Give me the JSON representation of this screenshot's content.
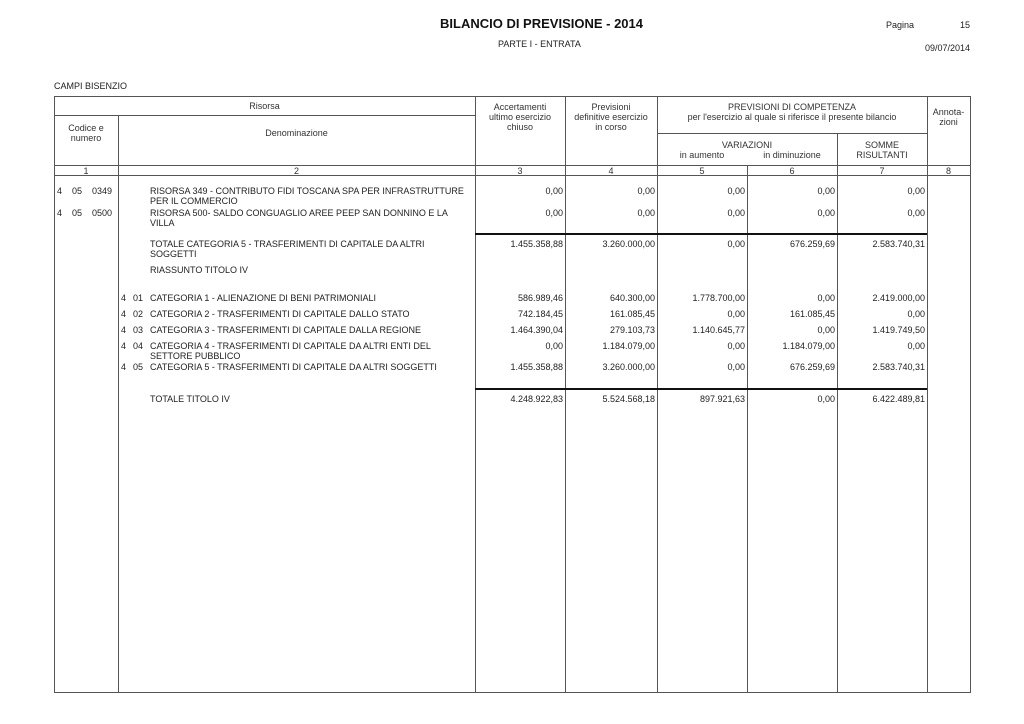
{
  "header": {
    "title": "BILANCIO DI PREVISIONE - 2014",
    "subtitle": "PARTE I - ENTRATA",
    "page_label": "Pagina",
    "page_number": "15",
    "date": "09/07/2014",
    "entity": "CAMPI BISENZIO"
  },
  "table_header": {
    "risorsa": "Risorsa",
    "codice": "Codice e\nnumero",
    "denominazione": "Denominazione",
    "accertamenti": "Accertamenti\nultimo esercizio\nchiuso",
    "previsioni": "Previsioni\ndefinitive esercizio\nin corso",
    "competenza": "PREVISIONI DI COMPETENZA\nper l'esercizio al quale si riferisce il presente bilancio",
    "variazioni": "VARIAZIONI",
    "in_aumento": "in aumento",
    "in_diminuzione": "in diminuzione",
    "somme": "SOMME\nRISULTANTI",
    "annotazioni": "Annota-\nzioni",
    "col_numbers": [
      "1",
      "2",
      "3",
      "4",
      "5",
      "6",
      "7",
      "8"
    ]
  },
  "rows": [
    {
      "code": [
        "4",
        "05",
        "0349"
      ],
      "desc": "RISORSA 349 - CONTRIBUTO FIDI TOSCANA SPA PER INFRASTRUTTURE PER IL COMMERCIO",
      "values": [
        "0,00",
        "0,00",
        "0,00",
        "0,00",
        "0,00"
      ]
    },
    {
      "code": [
        "4",
        "05",
        "0500"
      ],
      "desc": "RISORSA 500- SALDO CONGUAGLIO AREE PEEP SAN DONNINO E LA VILLA",
      "values": [
        "0,00",
        "0,00",
        "0,00",
        "0,00",
        "0,00"
      ]
    },
    {
      "code": [],
      "desc": "TOTALE CATEGORIA 5 - TRASFERIMENTI DI CAPITALE DA ALTRI SOGGETTI",
      "values": [
        "1.455.358,88",
        "3.260.000,00",
        "0,00",
        "676.259,69",
        "2.583.740,31"
      ]
    },
    {
      "code": [],
      "desc": "RIASSUNTO TITOLO IV",
      "values": []
    },
    {
      "cat": [
        "4",
        "01"
      ],
      "desc": "CATEGORIA 1 - ALIENAZIONE DI BENI PATRIMONIALI",
      "values": [
        "586.989,46",
        "640.300,00",
        "1.778.700,00",
        "0,00",
        "2.419.000,00"
      ]
    },
    {
      "cat": [
        "4",
        "02"
      ],
      "desc": "CATEGORIA 2 - TRASFERIMENTI DI CAPITALE DALLO STATO",
      "values": [
        "742.184,45",
        "161.085,45",
        "0,00",
        "161.085,45",
        "0,00"
      ]
    },
    {
      "cat": [
        "4",
        "03"
      ],
      "desc": "CATEGORIA 3 - TRASFERIMENTI DI CAPITALE DALLA REGIONE",
      "values": [
        "1.464.390,04",
        "279.103,73",
        "1.140.645,77",
        "0,00",
        "1.419.749,50"
      ]
    },
    {
      "cat": [
        "4",
        "04"
      ],
      "desc": "CATEGORIA 4 - TRASFERIMENTI DI CAPITALE DA ALTRI ENTI DEL SETTORE PUBBLICO",
      "values": [
        "0,00",
        "1.184.079,00",
        "0,00",
        "1.184.079,00",
        "0,00"
      ]
    },
    {
      "cat": [
        "4",
        "05"
      ],
      "desc": "CATEGORIA 5 - TRASFERIMENTI DI CAPITALE DA ALTRI SOGGETTI",
      "values": [
        "1.455.358,88",
        "3.260.000,00",
        "0,00",
        "676.259,69",
        "2.583.740,31"
      ]
    },
    {
      "code": [],
      "desc": "TOTALE TITOLO IV",
      "values": [
        "4.248.922,83",
        "5.524.568,18",
        "897.921,63",
        "0,00",
        "6.422.489,81"
      ]
    }
  ]
}
